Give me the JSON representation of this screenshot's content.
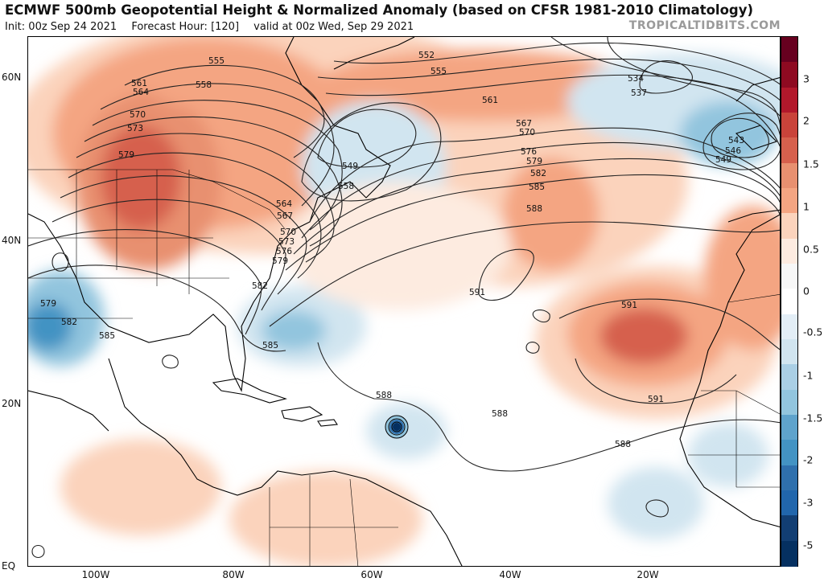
{
  "header": {
    "title": "ECMWF 500mb Geopotential Height & Normalized Anomaly (based on CFSR 1981-2010 Climatology)",
    "init": "Init: 00z Sep 24 2021",
    "forecast_hour": "Forecast Hour: [120]",
    "valid": "valid at 00z Wed, Sep 29 2021",
    "watermark": "TROPICALTIDBITS.COM"
  },
  "map": {
    "lat_labels": [
      "60N",
      "40N",
      "20N",
      "EQ"
    ],
    "lon_labels": [
      "100W",
      "80W",
      "60W",
      "40W",
      "20W"
    ],
    "contour_labels": [
      "552",
      "555",
      "555",
      "558",
      "561",
      "564",
      "570",
      "573",
      "579",
      "549",
      "558",
      "564",
      "567",
      "570",
      "573",
      "576",
      "579",
      "582",
      "585",
      "561",
      "567",
      "570",
      "576",
      "579",
      "582",
      "585",
      "588",
      "534",
      "537",
      "543",
      "546",
      "549",
      "591",
      "591",
      "591",
      "588",
      "588",
      "588",
      "579",
      "582",
      "585"
    ]
  },
  "colorbar": {
    "labels": [
      "3",
      "2",
      "1.5",
      "1",
      "0.5",
      "0",
      "-0.5",
      "-1",
      "-1.5",
      "-2",
      "-3",
      "-5"
    ],
    "colors": [
      "#67001f",
      "#8e0a21",
      "#b2182b",
      "#c9433a",
      "#d6604d",
      "#e89070",
      "#f4a582",
      "#fbd3bc",
      "#fdebe0",
      "#f7f7f7",
      "#ffffff",
      "#e3eef6",
      "#d1e5f0",
      "#aacfe5",
      "#92c5de",
      "#5fa3cc",
      "#4393c3",
      "#2f70ad",
      "#2166ac",
      "#123e73",
      "#053061"
    ]
  }
}
